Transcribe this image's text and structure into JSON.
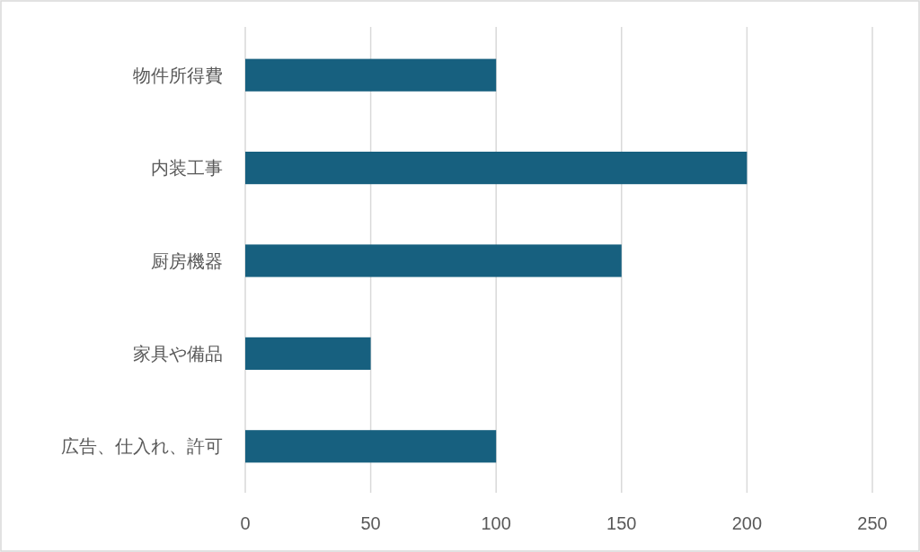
{
  "chart_data": {
    "type": "bar",
    "orientation": "horizontal",
    "categories": [
      "物件所得費",
      "内装工事",
      "厨房機器",
      "家具や備品",
      "広告、仕入れ、許可"
    ],
    "values": [
      100,
      200,
      150,
      50,
      100
    ],
    "color": "#17607f",
    "xlim": [
      0,
      250
    ],
    "xticks": [
      0,
      50,
      100,
      150,
      200,
      250
    ],
    "grid": "x"
  }
}
